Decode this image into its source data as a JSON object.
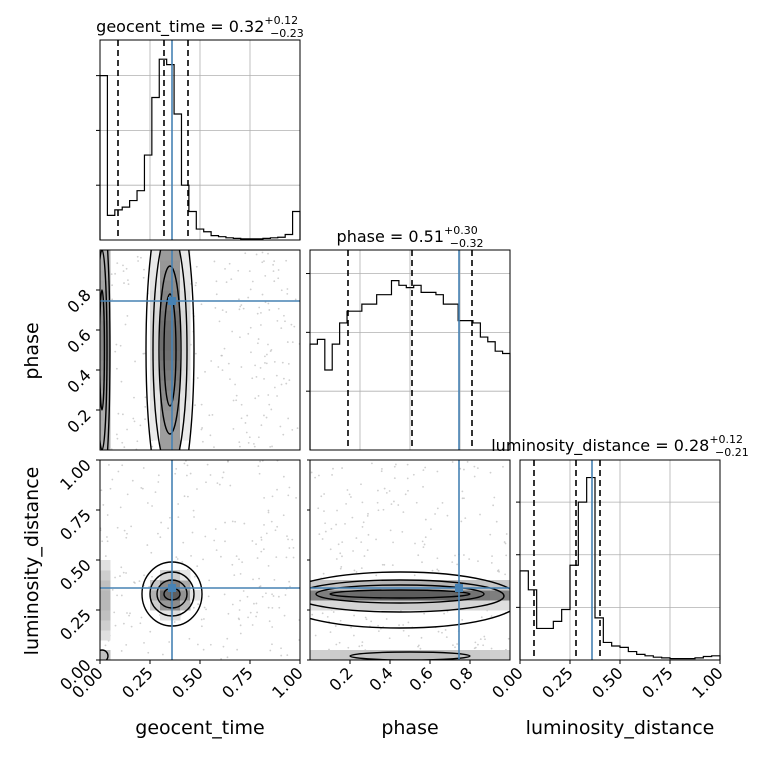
{
  "chart_data": {
    "type": "corner",
    "parameters": [
      "geocent_time",
      "phase",
      "luminosity_distance"
    ],
    "titles": [
      {
        "name": "geocent_time",
        "value": "0.32",
        "plus": "+0.12",
        "minus": "−0.23"
      },
      {
        "name": "phase",
        "value": "0.51",
        "plus": "+0.30",
        "minus": "−0.32"
      },
      {
        "name": "luminosity_distance",
        "value": "0.28",
        "plus": "+0.12",
        "minus": "−0.21"
      }
    ],
    "ranges": {
      "geocent_time": [
        0.0,
        1.0
      ],
      "phase": [
        0.0,
        1.0
      ],
      "luminosity_distance": [
        0.0,
        1.0
      ]
    },
    "truths": {
      "geocent_time": 0.36,
      "phase": 0.745,
      "luminosity_distance": 0.36
    },
    "quantiles": {
      "geocent_time": [
        0.09,
        0.32,
        0.44
      ],
      "phase": [
        0.19,
        0.51,
        0.81
      ],
      "luminosity_distance": [
        0.07,
        0.28,
        0.4
      ]
    },
    "histograms": {
      "geocent_time": [
        3.0,
        0.45,
        0.55,
        0.6,
        0.72,
        0.9,
        1.55,
        2.6,
        3.3,
        3.2,
        2.3,
        1.0,
        0.52,
        0.2,
        0.15,
        0.08,
        0.06,
        0.04,
        0.03,
        0.02,
        0.02,
        0.02,
        0.03,
        0.04,
        0.05,
        0.1,
        0.52
      ],
      "phase": [
        0.45,
        0.47,
        0.34,
        0.45,
        0.54,
        0.59,
        0.59,
        0.62,
        0.62,
        0.66,
        0.66,
        0.72,
        0.7,
        0.69,
        0.7,
        0.67,
        0.67,
        0.66,
        0.62,
        0.62,
        0.55,
        0.55,
        0.54,
        0.48,
        0.46,
        0.42,
        0.41
      ],
      "luminosity_distance": [
        1.27,
        1.0,
        0.45,
        0.45,
        0.55,
        0.72,
        1.35,
        2.25,
        2.6,
        0.6,
        0.25,
        0.2,
        0.18,
        0.12,
        0.08,
        0.06,
        0.04,
        0.03,
        0.02,
        0.02,
        0.02,
        0.03,
        0.05,
        0.06
      ]
    },
    "hist_ylim": {
      "geocent_time": [
        0,
        3.65
      ],
      "phase": [
        0,
        0.85
      ],
      "luminosity_distance": [
        0,
        2.85
      ]
    },
    "hist_yticks": {
      "geocent_time": [
        1.0,
        2.0,
        3.0
      ],
      "phase": [
        0.25,
        0.5,
        0.75
      ],
      "luminosity_distance": [
        0.75,
        1.5,
        2.25
      ]
    },
    "density_2d": {
      "phase_vs_geocent_time": {
        "type": "contour",
        "peak": {
          "x": 0.35,
          "y": 0.5
        },
        "spread": {
          "x": 0.07,
          "y": 0.3
        }
      },
      "luminosity_distance_vs_geocent_time": {
        "type": "contour",
        "peak": {
          "x": 0.36,
          "y": 0.33
        },
        "spread": {
          "x": 0.08,
          "y": 0.08
        }
      },
      "luminosity_distance_vs_phase": {
        "type": "contour",
        "peak": {
          "x": 0.45,
          "y": 0.33
        },
        "spread": {
          "x": 0.4,
          "y": 0.05
        }
      }
    },
    "x_ticks": {
      "geocent_time": [
        "0.00",
        "0.25",
        "0.50",
        "0.75",
        "1.00"
      ],
      "phase": [
        "0.2",
        "0.4",
        "0.6",
        "0.8"
      ],
      "luminosity_distance": [
        "0.00",
        "0.25",
        "0.50",
        "0.75",
        "1.00"
      ]
    },
    "y_ticks": {
      "phase": [
        "0.2",
        "0.4",
        "0.6",
        "0.8"
      ],
      "luminosity_distance": [
        "0.00",
        "0.25",
        "0.50",
        "0.75",
        "1.00"
      ]
    },
    "x_labels": [
      "geocent_time",
      "phase",
      "luminosity_distance"
    ],
    "y_labels": [
      "phase",
      "luminosity_distance"
    ],
    "colors": {
      "truth": "#4682b4",
      "hist": "#000000",
      "grid": "#b0b0b0",
      "points": "#bbbbbb"
    }
  }
}
